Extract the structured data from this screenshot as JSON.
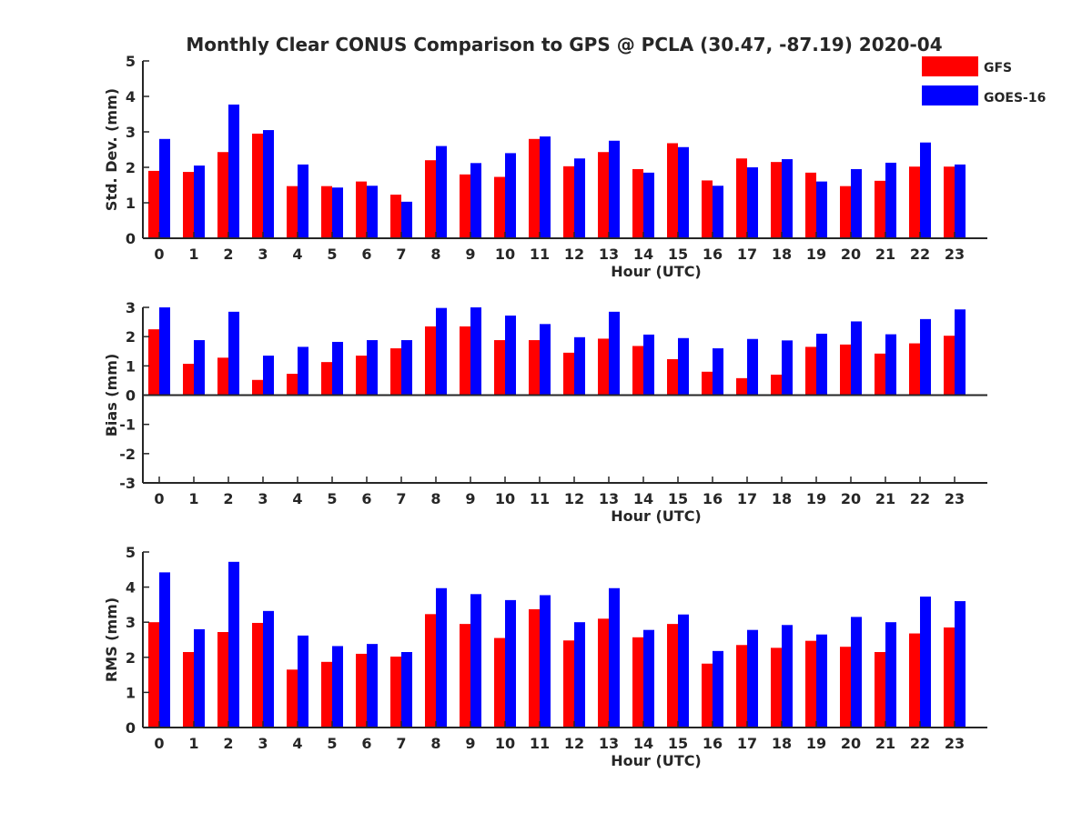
{
  "chart_data": {
    "type": "bar",
    "title": "Monthly Clear CONUS Comparison to GPS @ PCLA (30.47, -87.19) 2020-04",
    "legend": {
      "placement": "top-right",
      "entries": [
        {
          "name": "GFS",
          "color": "#ff0000"
        },
        {
          "name": "GOES-16",
          "color": "#0000ff"
        }
      ]
    },
    "categories": [
      "0",
      "1",
      "2",
      "3",
      "4",
      "5",
      "6",
      "7",
      "8",
      "9",
      "10",
      "11",
      "12",
      "13",
      "14",
      "15",
      "16",
      "17",
      "18",
      "19",
      "20",
      "21",
      "22",
      "23"
    ],
    "panels": [
      {
        "id": "std",
        "ylabel": "Std. Dev. (mm)",
        "xlabel": "Hour (UTC)",
        "ylim": [
          0,
          5
        ],
        "yticks": [
          "0",
          "1",
          "2",
          "3",
          "4",
          "5"
        ],
        "series": [
          {
            "name": "GFS",
            "color": "#ff0000",
            "values": [
              1.9,
              1.87,
              2.43,
              2.95,
              1.47,
              1.47,
              1.6,
              1.23,
              2.2,
              1.8,
              1.73,
              2.8,
              2.03,
              2.43,
              1.95,
              2.68,
              1.63,
              2.25,
              2.15,
              1.85,
              1.47,
              1.62,
              2.02,
              2.02
            ]
          },
          {
            "name": "GOES-16",
            "color": "#0000ff",
            "values": [
              2.8,
              2.05,
              3.77,
              3.05,
              2.08,
              1.43,
              1.48,
              1.03,
              2.6,
              2.12,
              2.4,
              2.87,
              2.25,
              2.75,
              1.85,
              2.57,
              1.48,
              2.0,
              2.23,
              1.6,
              1.95,
              2.13,
              2.7,
              2.08
            ]
          }
        ]
      },
      {
        "id": "bias",
        "ylabel": "Bias (mm)",
        "xlabel": "Hour (UTC)",
        "ylim": [
          -3,
          3
        ],
        "yticks": [
          "-3",
          "-2",
          "-1",
          "0",
          "1",
          "2",
          "3"
        ],
        "series": [
          {
            "name": "GFS",
            "color": "#ff0000",
            "values": [
              2.25,
              1.07,
              1.28,
              0.52,
              0.73,
              1.13,
              1.35,
              1.6,
              2.35,
              2.35,
              1.88,
              1.88,
              1.45,
              1.93,
              1.68,
              1.23,
              0.8,
              0.58,
              0.7,
              1.65,
              1.73,
              1.42,
              1.77,
              2.03
            ]
          },
          {
            "name": "GOES-16",
            "color": "#0000ff",
            "values": [
              3.0,
              1.88,
              2.85,
              1.35,
              1.65,
              1.82,
              1.88,
              1.88,
              2.98,
              3.0,
              2.72,
              2.43,
              1.98,
              2.85,
              2.07,
              1.95,
              1.6,
              1.92,
              1.87,
              2.1,
              2.52,
              2.08,
              2.6,
              2.93
            ]
          }
        ]
      },
      {
        "id": "rms",
        "ylabel": "RMS (mm)",
        "xlabel": "Hour (UTC)",
        "ylim": [
          0,
          5
        ],
        "yticks": [
          "0",
          "1",
          "2",
          "3",
          "4",
          "5"
        ],
        "series": [
          {
            "name": "GFS",
            "color": "#ff0000",
            "values": [
              3.0,
              2.15,
              2.72,
              2.98,
              1.65,
              1.87,
              2.1,
              2.02,
              3.23,
              2.95,
              2.55,
              3.37,
              2.48,
              3.1,
              2.57,
              2.95,
              1.82,
              2.35,
              2.27,
              2.47,
              2.3,
              2.15,
              2.68,
              2.85
            ]
          },
          {
            "name": "GOES-16",
            "color": "#0000ff",
            "values": [
              4.42,
              2.8,
              4.72,
              3.32,
              2.62,
              2.32,
              2.38,
              2.15,
              3.97,
              3.8,
              3.63,
              3.77,
              3.0,
              3.97,
              2.78,
              3.22,
              2.18,
              2.78,
              2.92,
              2.65,
              3.15,
              3.0,
              3.73,
              3.6
            ]
          }
        ]
      }
    ]
  }
}
